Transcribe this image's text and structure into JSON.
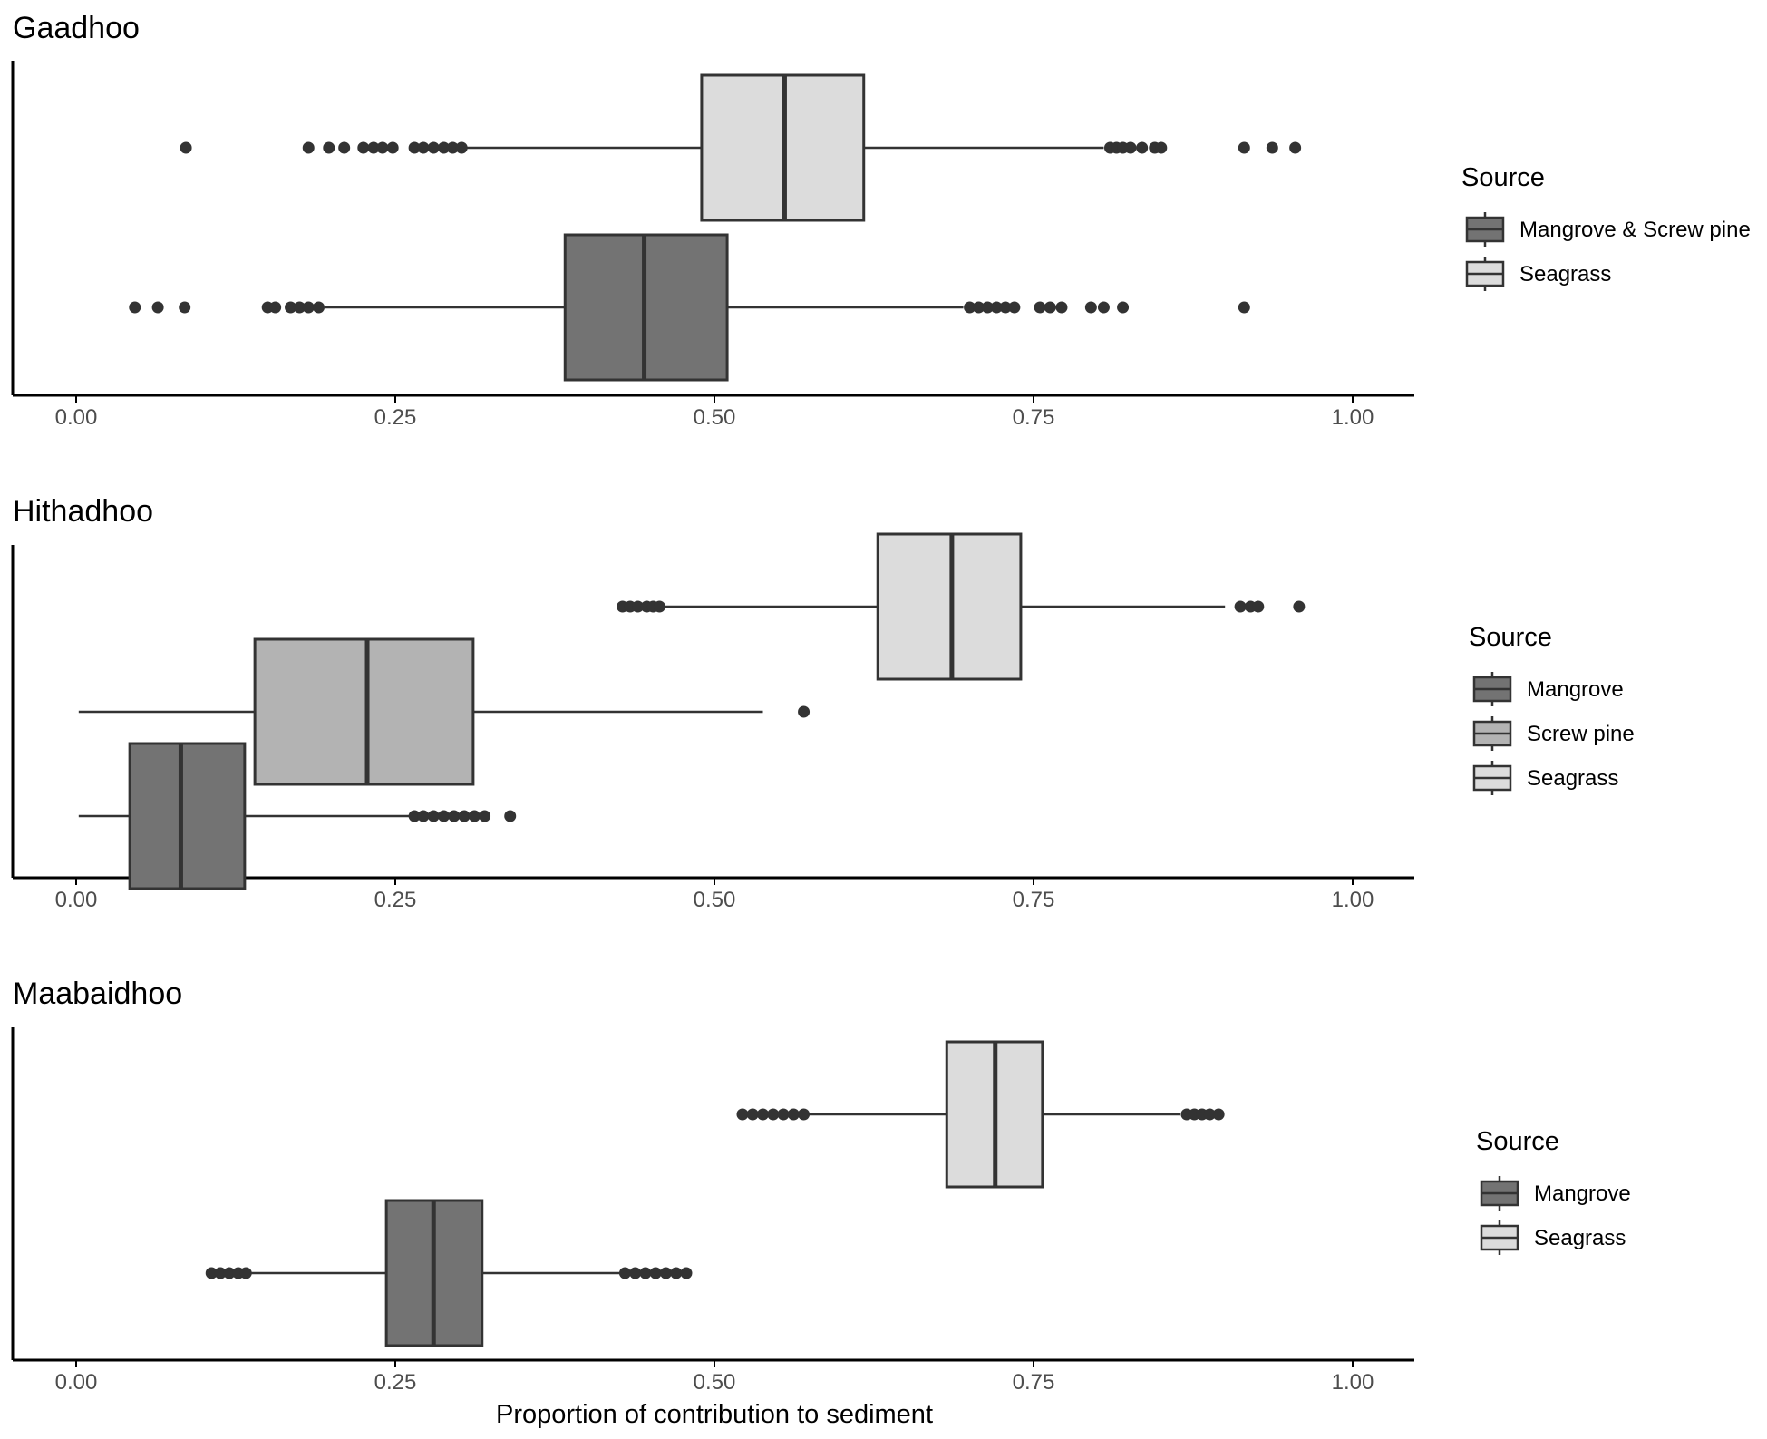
{
  "colors": {
    "mangrove_screwpine": "#737373",
    "mangrove": "#737373",
    "screw_pine": "#b3b3b3",
    "seagrass": "#dcdcdc",
    "line": "#333333",
    "outlier": "#333333",
    "axis": "#000000",
    "tick_label": "#4d4d4d"
  },
  "chart_data": [
    {
      "type": "boxplot",
      "orientation": "horizontal",
      "title": "Gaadhoo",
      "xlabel": "",
      "ylabel": "",
      "xlim": [
        0.0,
        1.0
      ],
      "ticks": [
        0.0,
        0.25,
        0.5,
        0.75,
        1.0
      ],
      "tick_labels": [
        "0.00",
        "0.25",
        "0.50",
        "0.75",
        "1.00"
      ],
      "legend": {
        "title": "Source",
        "position": "right",
        "entries": [
          {
            "label": "Mangrove & Screw pine",
            "color": "#737373"
          },
          {
            "label": "Seagrass",
            "color": "#dcdcdc"
          }
        ]
      },
      "series": [
        {
          "name": "Seagrass",
          "color": "#dcdcdc",
          "stats": {
            "whisker_low": 0.305,
            "q1": 0.49,
            "median": 0.555,
            "q3": 0.617,
            "whisker_high": 0.805
          },
          "outliers": [
            0.086,
            0.182,
            0.198,
            0.21,
            0.225,
            0.233,
            0.24,
            0.248,
            0.265,
            0.272,
            0.28,
            0.288,
            0.295,
            0.302,
            0.81,
            0.815,
            0.82,
            0.826,
            0.835,
            0.845,
            0.85,
            0.915,
            0.937,
            0.955
          ]
        },
        {
          "name": "Mangrove & Screw pine",
          "color": "#737373",
          "stats": {
            "whisker_low": 0.195,
            "q1": 0.383,
            "median": 0.445,
            "q3": 0.51,
            "whisker_high": 0.695
          },
          "outliers": [
            0.046,
            0.064,
            0.085,
            0.15,
            0.156,
            0.168,
            0.175,
            0.182,
            0.19,
            0.7,
            0.707,
            0.714,
            0.721,
            0.728,
            0.735,
            0.755,
            0.763,
            0.772,
            0.795,
            0.805,
            0.82,
            0.915
          ]
        }
      ]
    },
    {
      "type": "boxplot",
      "orientation": "horizontal",
      "title": "Hithadhoo",
      "xlabel": "",
      "ylabel": "",
      "xlim": [
        0.0,
        1.0
      ],
      "ticks": [
        0.0,
        0.25,
        0.5,
        0.75,
        1.0
      ],
      "tick_labels": [
        "0.00",
        "0.25",
        "0.50",
        "0.75",
        "1.00"
      ],
      "legend": {
        "title": "Source",
        "position": "right",
        "entries": [
          {
            "label": "Mangrove",
            "color": "#737373"
          },
          {
            "label": "Screw pine",
            "color": "#b3b3b3"
          },
          {
            "label": "Seagrass",
            "color": "#dcdcdc"
          }
        ]
      },
      "series": [
        {
          "name": "Seagrass",
          "color": "#dcdcdc",
          "stats": {
            "whisker_low": 0.458,
            "q1": 0.628,
            "median": 0.686,
            "q3": 0.74,
            "whisker_high": 0.9
          },
          "outliers": [
            0.428,
            0.434,
            0.44,
            0.447,
            0.452,
            0.457,
            0.912,
            0.92,
            0.926,
            0.958
          ]
        },
        {
          "name": "Screw pine",
          "color": "#b3b3b3",
          "stats": {
            "whisker_low": 0.002,
            "q1": 0.14,
            "median": 0.228,
            "q3": 0.311,
            "whisker_high": 0.538
          },
          "outliers": [
            0.57
          ]
        },
        {
          "name": "Mangrove",
          "color": "#737373",
          "stats": {
            "whisker_low": 0.002,
            "q1": 0.042,
            "median": 0.082,
            "q3": 0.132,
            "whisker_high": 0.265
          },
          "outliers": [
            0.265,
            0.272,
            0.28,
            0.288,
            0.296,
            0.304,
            0.312,
            0.32,
            0.34
          ]
        }
      ]
    },
    {
      "type": "boxplot",
      "orientation": "horizontal",
      "title": "Maabaidhoo",
      "xlabel": "Proportion of contribution to sediment",
      "ylabel": "",
      "xlim": [
        0.0,
        1.0
      ],
      "ticks": [
        0.0,
        0.25,
        0.5,
        0.75,
        1.0
      ],
      "tick_labels": [
        "0.00",
        "0.25",
        "0.50",
        "0.75",
        "1.00"
      ],
      "legend": {
        "title": "Source",
        "position": "right",
        "entries": [
          {
            "label": "Mangrove",
            "color": "#737373"
          },
          {
            "label": "Seagrass",
            "color": "#dcdcdc"
          }
        ]
      },
      "series": [
        {
          "name": "Seagrass",
          "color": "#dcdcdc",
          "stats": {
            "whisker_low": 0.572,
            "q1": 0.682,
            "median": 0.72,
            "q3": 0.757,
            "whisker_high": 0.865
          },
          "outliers": [
            0.522,
            0.53,
            0.538,
            0.546,
            0.554,
            0.562,
            0.57,
            0.87,
            0.876,
            0.882,
            0.888,
            0.895
          ]
        },
        {
          "name": "Mangrove",
          "color": "#737373",
          "stats": {
            "whisker_low": 0.135,
            "q1": 0.243,
            "median": 0.28,
            "q3": 0.318,
            "whisker_high": 0.428
          },
          "outliers": [
            0.106,
            0.113,
            0.12,
            0.127,
            0.133,
            0.43,
            0.438,
            0.446,
            0.454,
            0.462,
            0.47,
            0.478
          ]
        }
      ]
    }
  ]
}
